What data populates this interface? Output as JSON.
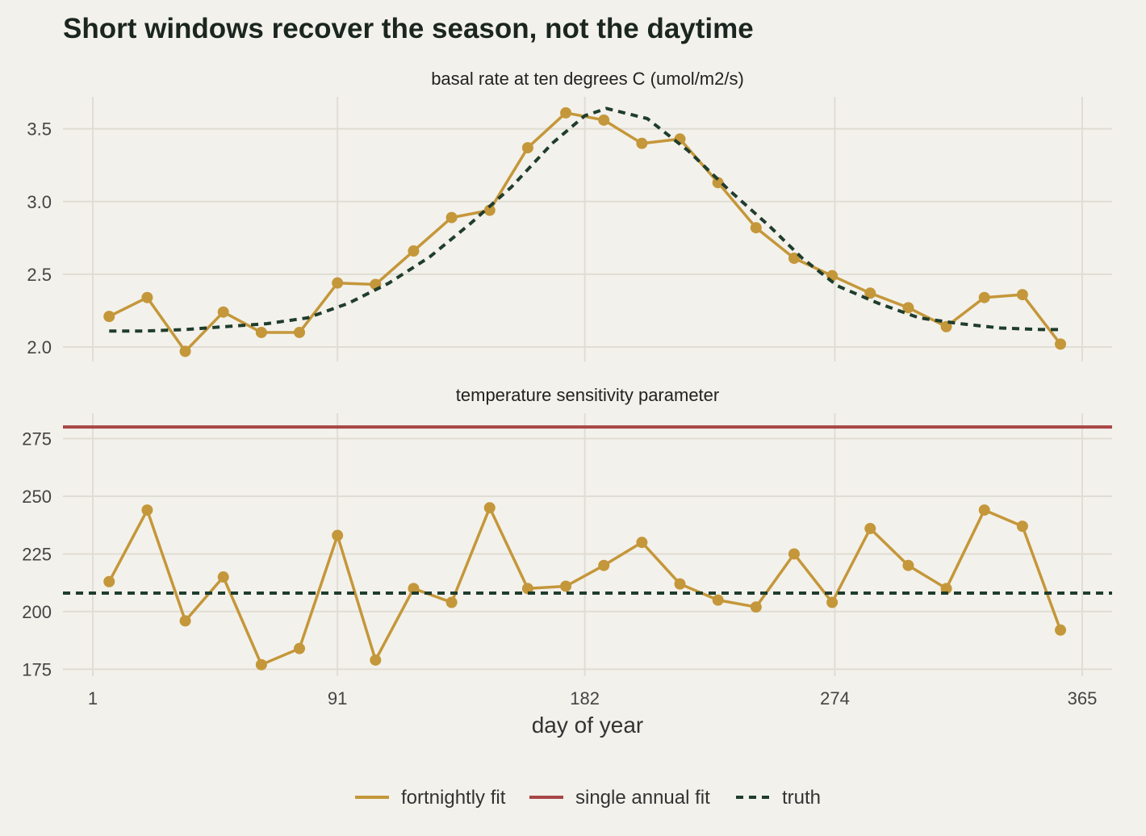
{
  "title": "Short windows recover the season, not the daytime",
  "colors": {
    "fortnightly": "#c4973a",
    "annual": "#a84646",
    "truth": "#1f3d2d"
  },
  "chart_data": {
    "type": "line",
    "xlabel": "day of year",
    "x_ticks": [
      1,
      91,
      182,
      274,
      365
    ],
    "xlim": [
      -10,
      376
    ],
    "legend": {
      "position": "bottom",
      "items": [
        "fortnightly fit",
        "single annual fit",
        "truth"
      ]
    },
    "panels": [
      {
        "strip_label": "basal rate at ten degrees C (umol/m2/s)",
        "ylim": [
          1.9,
          3.72
        ],
        "y_ticks": [
          2.0,
          2.5,
          3.0,
          3.5
        ],
        "y_tick_labels": [
          "2.0",
          "2.5",
          "3.0",
          "3.5"
        ],
        "series": [
          {
            "name": "fortnightly fit",
            "x": [
              7,
              21,
              35,
              49,
              63,
              77,
              91,
              105,
              119,
              133,
              147,
              161,
              175,
              189,
              203,
              217,
              231,
              245,
              259,
              273,
              287,
              301,
              315,
              329,
              343,
              357
            ],
            "y": [
              2.21,
              2.34,
              1.97,
              2.24,
              2.1,
              2.1,
              2.44,
              2.43,
              2.66,
              2.89,
              2.94,
              3.37,
              3.61,
              3.56,
              3.4,
              3.43,
              3.13,
              2.82,
              2.61,
              2.49,
              2.37,
              2.27,
              2.14,
              2.34,
              2.36,
              2.02
            ]
          },
          {
            "name": "truth",
            "x": [
              7,
              20,
              35,
              50,
              65,
              80,
              95,
              110,
              125,
              140,
              155,
              170,
              182,
              190,
              205,
              220,
              235,
              250,
              262,
              275,
              290,
              305,
              320,
              335,
              350,
              357
            ],
            "y": [
              2.11,
              2.11,
              2.12,
              2.14,
              2.16,
              2.2,
              2.3,
              2.44,
              2.62,
              2.85,
              3.1,
              3.4,
              3.59,
              3.64,
              3.57,
              3.35,
              3.08,
              2.83,
              2.61,
              2.42,
              2.3,
              2.2,
              2.16,
              2.13,
              2.12,
              2.12
            ]
          }
        ]
      },
      {
        "strip_label": "temperature sensitivity parameter",
        "ylim": [
          172,
          286
        ],
        "y_ticks": [
          175,
          200,
          225,
          250,
          275
        ],
        "y_tick_labels": [
          "175",
          "200",
          "225",
          "250",
          "275"
        ],
        "series": [
          {
            "name": "fortnightly fit",
            "x": [
              7,
              21,
              35,
              49,
              63,
              77,
              91,
              105,
              119,
              133,
              147,
              161,
              175,
              189,
              203,
              217,
              231,
              245,
              259,
              273,
              287,
              301,
              315,
              329,
              343,
              357
            ],
            "y": [
              213,
              244,
              196,
              215,
              177,
              184,
              233,
              179,
              210,
              204,
              245,
              210,
              211,
              220,
              230,
              212,
              205,
              202,
              225,
              204,
              236,
              220,
              210,
              244,
              237,
              192
            ]
          },
          {
            "name": "single annual fit",
            "hline": 280
          },
          {
            "name": "truth",
            "hline": 208
          }
        ]
      }
    ]
  }
}
